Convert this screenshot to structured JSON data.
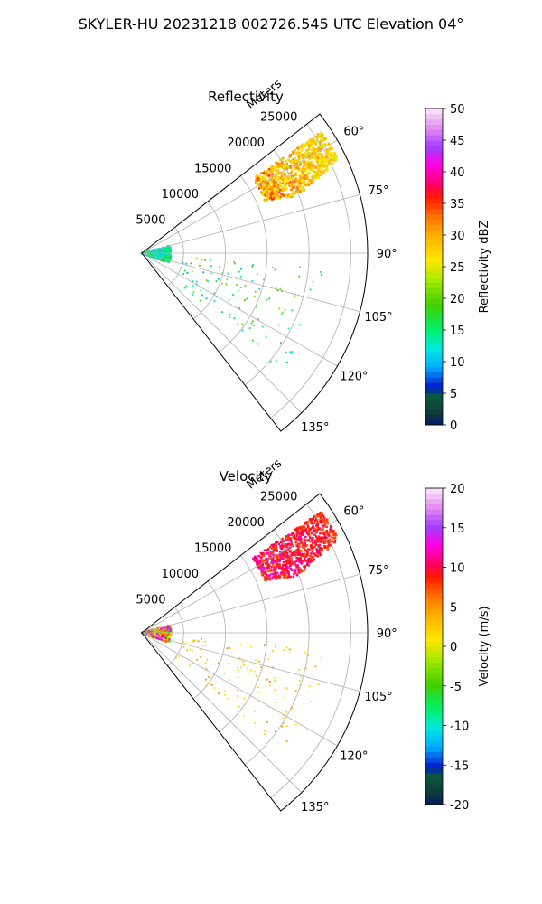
{
  "suptitle": "SKYLER-HU  20231218  002726.545 UTC Elevation 04°",
  "chart_data": [
    {
      "type": "polar-sector-ppi",
      "title": "Reflectivity",
      "radial_axis_label": "Meters",
      "radial_ticks": [
        "5000",
        "10000",
        "15000",
        "20000",
        "25000"
      ],
      "angular_ticks": [
        "60°",
        "75°",
        "90°",
        "105°",
        "120°",
        "135°"
      ],
      "angle_range_deg": [
        52,
        142
      ],
      "range_max_m": 27000,
      "grid": true,
      "colorbar": {
        "label": "Reflectivity dBZ",
        "range": [
          0,
          50
        ],
        "ticks": [
          "0",
          "5",
          "10",
          "15",
          "20",
          "25",
          "30",
          "35",
          "40",
          "45",
          "50"
        ]
      },
      "echoes": [
        {
          "name": "far-cluster-ne",
          "azimuth_deg": [
            56,
            70
          ],
          "range_m": [
            16000,
            26000
          ],
          "value_range": [
            18,
            36
          ]
        },
        {
          "name": "near-field-clutter",
          "azimuth_deg": [
            75,
            110
          ],
          "range_m": [
            0,
            3500
          ],
          "value_range": [
            10,
            18
          ]
        },
        {
          "name": "scattered-echoes-s",
          "azimuth_deg": [
            95,
            130
          ],
          "range_m": [
            5000,
            22000
          ],
          "value_range": [
            9,
            22
          ]
        }
      ]
    },
    {
      "type": "polar-sector-ppi",
      "title": "Velocity",
      "radial_axis_label": "Meters",
      "radial_ticks": [
        "5000",
        "10000",
        "15000",
        "20000",
        "25000"
      ],
      "angular_ticks": [
        "60°",
        "75°",
        "90°",
        "105°",
        "120°",
        "135°"
      ],
      "angle_range_deg": [
        52,
        142
      ],
      "range_max_m": 27000,
      "grid": true,
      "colorbar": {
        "label": "Velocity (m/s)",
        "range": [
          -20,
          20
        ],
        "ticks": [
          "-20",
          "-15",
          "-10",
          "-5",
          "0",
          "5",
          "10",
          "15",
          "20"
        ]
      },
      "echoes": [
        {
          "name": "far-cluster-ne",
          "azimuth_deg": [
            56,
            70
          ],
          "range_m": [
            16000,
            26000
          ],
          "value_range": [
            3,
            14
          ]
        },
        {
          "name": "near-field-clutter",
          "azimuth_deg": [
            75,
            110
          ],
          "range_m": [
            0,
            3500
          ],
          "value_range": [
            -6,
            16
          ]
        },
        {
          "name": "scattered-echoes-s",
          "azimuth_deg": [
            95,
            130
          ],
          "range_m": [
            5000,
            22000
          ],
          "value_range": [
            0,
            6
          ]
        }
      ]
    }
  ]
}
